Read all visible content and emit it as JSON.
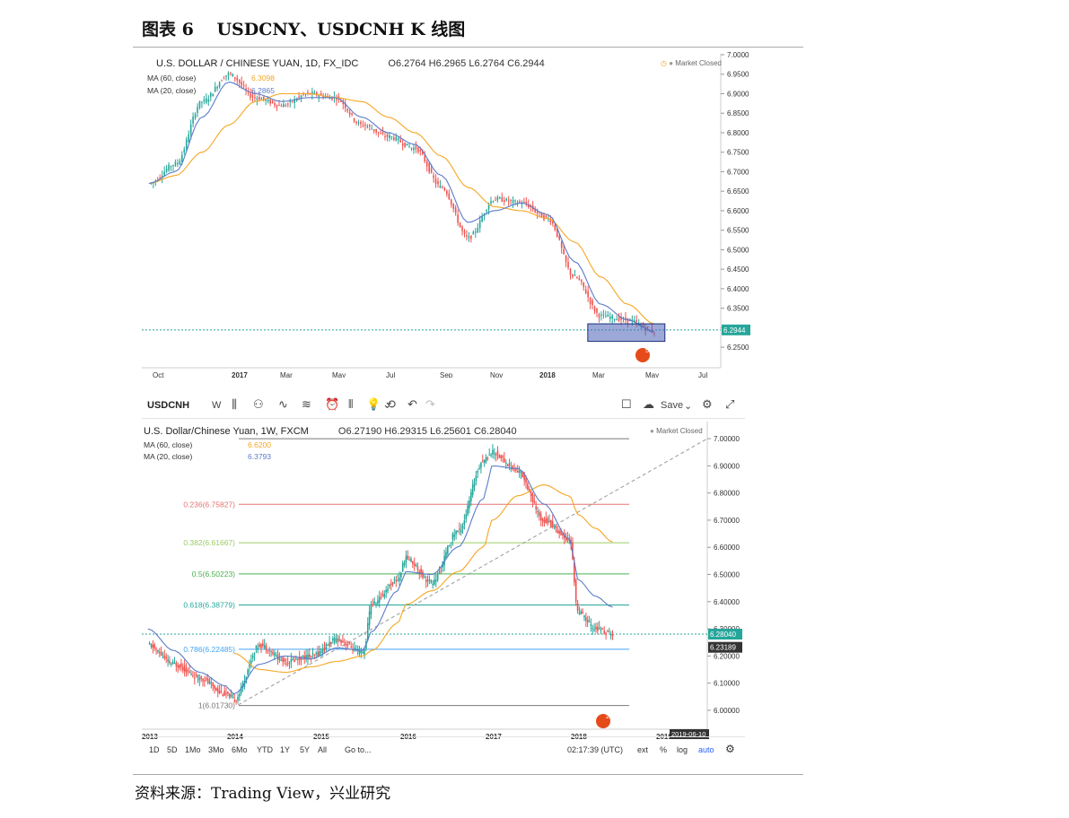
{
  "figure_title": "图表 6　 USDCNY、USDCNH K 线图",
  "source": "资料来源：Trading View，兴业研究",
  "panel1": {
    "header": "U.S. DOLLAR / CHINESE YUAN, 1D, FX_IDC",
    "ohlc": "O6.2764  H6.2965  L6.2764  C6.2944",
    "ma60": "MA (60, close)",
    "ma60_value": "6.3098",
    "ma20": "MA (20, close)",
    "ma20_value": "6.2865",
    "market": "Market Closed",
    "price_tag": "6.2944",
    "badge": "5"
  },
  "panel2": {
    "toolbar": {
      "symbol": "USDCNH",
      "interval": "W",
      "save": "Save"
    },
    "header": "U.S. Dollar/Chinese Yuan, 1W, FXCM",
    "ohlc": "O6.27190  H6.29315  L6.25601  C6.28040",
    "ma60": "MA (60, close)",
    "ma60_value": "6.6200",
    "ma20": "MA (20, close)",
    "ma20_value": "6.3793",
    "market": "Market Closed",
    "price_tag": "6.28040",
    "price_tag2": "6.23189",
    "date_tag": "2019-06-10",
    "badge": "2",
    "bottom": {
      "ranges": [
        "1D",
        "5D",
        "1Mo",
        "3Mo",
        "6Mo",
        "YTD",
        "1Y",
        "5Y",
        "All"
      ],
      "goto": "Go to...",
      "time": "02:17:39 (UTC)",
      "opts": [
        "ext",
        "%",
        "log",
        "auto"
      ]
    }
  },
  "colors": {
    "up": "#26a69a",
    "down": "#ef5350",
    "ma60": "#f5a623",
    "ma20": "#5b7bc8",
    "box": "#4a63b8"
  },
  "chart_data": [
    {
      "type": "line",
      "title": "U.S. DOLLAR / CHINESE YUAN, 1D, FX_IDC",
      "x_ticks": [
        "Oct",
        "2017",
        "Mar",
        "May",
        "Jul",
        "Sep",
        "Nov",
        "2018",
        "Mar",
        "May",
        "Jul"
      ],
      "y_ticks": [
        "7.0000",
        "6.9500",
        "6.9000",
        "6.8500",
        "6.8000",
        "6.7500",
        "6.7000",
        "6.6500",
        "6.6000",
        "6.5500",
        "6.5000",
        "6.4500",
        "6.4000",
        "6.3500",
        "6.3000",
        "6.2500"
      ],
      "ylim": [
        6.225,
        7.0
      ],
      "x": [
        "2016-09",
        "2016-10",
        "2016-11",
        "2016-12",
        "2017-01",
        "2017-02",
        "2017-03",
        "2017-04",
        "2017-05",
        "2017-06",
        "2017-07",
        "2017-08",
        "2017-09",
        "2017-10",
        "2017-11",
        "2017-12",
        "2018-01",
        "2018-02",
        "2018-03",
        "2018-04"
      ],
      "series": [
        {
          "name": "USDCNY",
          "values": [
            6.67,
            6.72,
            6.88,
            6.95,
            6.89,
            6.87,
            6.9,
            6.89,
            6.82,
            6.79,
            6.76,
            6.66,
            6.53,
            6.63,
            6.62,
            6.58,
            6.43,
            6.33,
            6.32,
            6.29
          ]
        },
        {
          "name": "MA (60, close)",
          "values": [
            6.67,
            6.69,
            6.75,
            6.82,
            6.88,
            6.9,
            6.9,
            6.89,
            6.88,
            6.84,
            6.8,
            6.74,
            6.66,
            6.61,
            6.6,
            6.58,
            6.52,
            6.43,
            6.36,
            6.31
          ]
        },
        {
          "name": "MA (20, close)",
          "values": [
            6.67,
            6.7,
            6.84,
            6.93,
            6.9,
            6.88,
            6.89,
            6.89,
            6.84,
            6.8,
            6.77,
            6.69,
            6.57,
            6.6,
            6.62,
            6.59,
            6.47,
            6.36,
            6.32,
            6.29
          ]
        }
      ]
    },
    {
      "type": "line",
      "title": "U.S. Dollar/Chinese Yuan, 1W, FXCM",
      "x_ticks": [
        "2013",
        "2014",
        "2015",
        "2016",
        "2017",
        "2018",
        "2019"
      ],
      "y_ticks": [
        "7.00000",
        "6.90000",
        "6.80000",
        "6.70000",
        "6.60000",
        "6.50000",
        "6.40000",
        "6.30000",
        "6.20000",
        "6.10000",
        "6.00000"
      ],
      "ylim": [
        5.97,
        7.03
      ],
      "fib_levels": [
        {
          "label": "0.236(6.75827)",
          "value": 6.75827,
          "color": "#e57373"
        },
        {
          "label": "0.382(6.61667)",
          "value": 6.61667,
          "color": "#9ccc65"
        },
        {
          "label": "0.5(6.50223)",
          "value": 6.50223,
          "color": "#4caf50"
        },
        {
          "label": "0.618(6.38779)",
          "value": 6.38779,
          "color": "#26a69a"
        },
        {
          "label": "0.786(6.22485)",
          "value": 6.22485,
          "color": "#42a5f5"
        },
        {
          "label": "1(6.01730)",
          "value": 6.0173,
          "color": "#777777"
        }
      ],
      "x": [
        2013.0,
        2013.3,
        2013.6,
        2013.9,
        2014.0,
        2014.3,
        2014.6,
        2014.9,
        2015.2,
        2015.5,
        2015.6,
        2015.9,
        2016.0,
        2016.3,
        2016.6,
        2016.9,
        2017.0,
        2017.3,
        2017.6,
        2017.9,
        2018.0,
        2018.2,
        2018.4
      ],
      "series": [
        {
          "name": "USDCNH",
          "values": [
            6.24,
            6.17,
            6.12,
            6.06,
            6.04,
            6.24,
            6.18,
            6.2,
            6.26,
            6.21,
            6.39,
            6.48,
            6.56,
            6.47,
            6.66,
            6.92,
            6.95,
            6.88,
            6.7,
            6.63,
            6.36,
            6.3,
            6.28
          ]
        },
        {
          "name": "MA (60, close)",
          "values": [
            null,
            null,
            null,
            null,
            6.21,
            6.15,
            6.14,
            6.16,
            6.18,
            6.2,
            6.22,
            6.32,
            6.39,
            6.44,
            6.51,
            6.6,
            6.7,
            6.79,
            6.83,
            6.79,
            6.72,
            6.67,
            6.62
          ]
        },
        {
          "name": "MA (20, close)",
          "values": [
            6.3,
            6.22,
            6.14,
            6.09,
            6.06,
            6.17,
            6.2,
            6.19,
            6.23,
            6.22,
            6.29,
            6.44,
            6.51,
            6.5,
            6.6,
            6.78,
            6.9,
            6.89,
            6.76,
            6.63,
            6.48,
            6.42,
            6.38
          ]
        }
      ]
    }
  ]
}
